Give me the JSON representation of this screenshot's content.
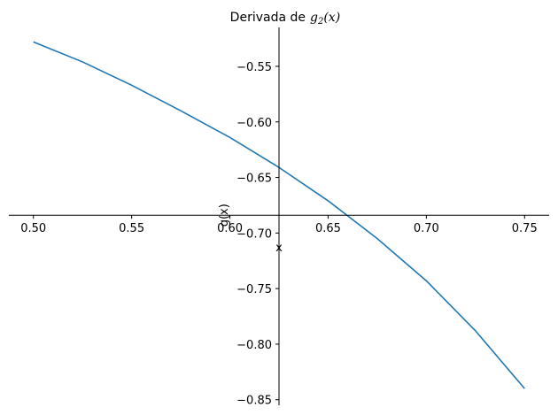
{
  "chart_data": {
    "type": "line",
    "title": "Derivada de",
    "title_math": "g2(x)",
    "title_math_base": "g",
    "title_math_sub": "2",
    "title_math_arg": "(x)",
    "xlabel": "x",
    "ylabel": "g(x)",
    "xlim": [
      0.4875,
      0.7625
    ],
    "ylim": [
      -0.855,
      -0.515
    ],
    "x_axis_at_y": -0.684,
    "y_axis_at_x": 0.625,
    "xticks": [
      0.5,
      0.55,
      0.6,
      0.65,
      0.7,
      0.75
    ],
    "xtick_labels": [
      "0.50",
      "0.55",
      "0.60",
      "0.65",
      "0.70",
      "0.75"
    ],
    "yticks": [
      -0.55,
      -0.6,
      -0.65,
      -0.7,
      -0.75,
      -0.8,
      -0.85
    ],
    "ytick_labels": [
      "−0.55",
      "−0.60",
      "−0.65",
      "−0.70",
      "−0.75",
      "−0.80",
      "−0.85"
    ],
    "grid": false,
    "series": [
      {
        "color": "#1f77b4",
        "x": [
          0.5,
          0.525,
          0.55,
          0.575,
          0.6,
          0.625,
          0.65,
          0.675,
          0.7,
          0.725,
          0.75
        ],
        "y": [
          -0.528,
          -0.546,
          -0.567,
          -0.59,
          -0.614,
          -0.641,
          -0.671,
          -0.705,
          -0.743,
          -0.788,
          -0.84
        ]
      }
    ]
  }
}
